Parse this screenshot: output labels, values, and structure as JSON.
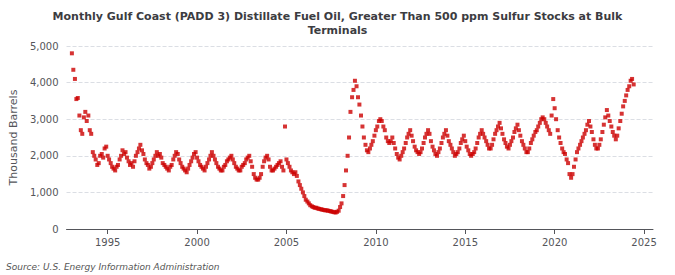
{
  "chart_data": {
    "type": "scatter",
    "title": "Monthly Gulf Coast (PADD 3) Distillate Fuel Oil, Greater Than 500 ppm Sulfur Stocks at Bulk\nTerminals",
    "ylabel": "Thousand Barrels",
    "source": "Source: U.S. Energy Information Administration",
    "color": "#cc0000",
    "marker": "square",
    "grid": true,
    "xlim": [
      1992.7,
      2025.5
    ],
    "xticks": [
      1995,
      2000,
      2005,
      2010,
      2015,
      2020,
      2025
    ],
    "ylim": [
      0,
      5000
    ],
    "yticks": [
      0,
      {
        "value": 1000,
        "label": "1,000"
      },
      {
        "value": 2000,
        "label": "2,000"
      },
      {
        "value": 3000,
        "label": "3,000"
      },
      {
        "value": 4000,
        "label": "4,000"
      },
      {
        "value": 5000,
        "label": "5,000"
      }
    ],
    "x": [
      1993.0,
      1993.08,
      1993.17,
      1993.25,
      1993.33,
      1993.42,
      1993.5,
      1993.58,
      1993.67,
      1993.75,
      1993.83,
      1993.92,
      1994.0,
      1994.08,
      1994.17,
      1994.25,
      1994.33,
      1994.42,
      1994.5,
      1994.58,
      1994.67,
      1994.75,
      1994.83,
      1994.92,
      1995.0,
      1995.08,
      1995.17,
      1995.25,
      1995.33,
      1995.42,
      1995.5,
      1995.58,
      1995.67,
      1995.75,
      1995.83,
      1995.92,
      1996.0,
      1996.08,
      1996.17,
      1996.25,
      1996.33,
      1996.42,
      1996.5,
      1996.58,
      1996.67,
      1996.75,
      1996.83,
      1996.92,
      1997.0,
      1997.08,
      1997.17,
      1997.25,
      1997.33,
      1997.42,
      1997.5,
      1997.58,
      1997.67,
      1997.75,
      1997.83,
      1997.92,
      1998.0,
      1998.08,
      1998.17,
      1998.25,
      1998.33,
      1998.42,
      1998.5,
      1998.58,
      1998.67,
      1998.75,
      1998.83,
      1998.92,
      1999.0,
      1999.08,
      1999.17,
      1999.25,
      1999.33,
      1999.42,
      1999.5,
      1999.58,
      1999.67,
      1999.75,
      1999.83,
      1999.92,
      2000.0,
      2000.08,
      2000.17,
      2000.25,
      2000.33,
      2000.42,
      2000.5,
      2000.58,
      2000.67,
      2000.75,
      2000.83,
      2000.92,
      2001.0,
      2001.08,
      2001.17,
      2001.25,
      2001.33,
      2001.42,
      2001.5,
      2001.58,
      2001.67,
      2001.75,
      2001.83,
      2001.92,
      2002.0,
      2002.08,
      2002.17,
      2002.25,
      2002.33,
      2002.42,
      2002.5,
      2002.58,
      2002.67,
      2002.75,
      2002.83,
      2002.92,
      2003.0,
      2003.08,
      2003.17,
      2003.25,
      2003.33,
      2003.42,
      2003.5,
      2003.58,
      2003.67,
      2003.75,
      2003.83,
      2003.92,
      2004.0,
      2004.08,
      2004.17,
      2004.25,
      2004.33,
      2004.42,
      2004.5,
      2004.58,
      2004.67,
      2004.75,
      2004.83,
      2004.92,
      2005.0,
      2005.08,
      2005.17,
      2005.25,
      2005.33,
      2005.42,
      2005.5,
      2005.58,
      2005.67,
      2005.75,
      2005.83,
      2005.92,
      2006.0,
      2006.08,
      2006.17,
      2006.25,
      2006.33,
      2006.42,
      2006.5,
      2006.58,
      2006.67,
      2006.75,
      2006.83,
      2006.92,
      2007.0,
      2007.08,
      2007.17,
      2007.25,
      2007.33,
      2007.42,
      2007.5,
      2007.58,
      2007.67,
      2007.75,
      2007.83,
      2007.92,
      2008.0,
      2008.08,
      2008.17,
      2008.25,
      2008.33,
      2008.42,
      2008.5,
      2008.58,
      2008.67,
      2008.75,
      2008.83,
      2008.92,
      2009.0,
      2009.08,
      2009.17,
      2009.25,
      2009.33,
      2009.42,
      2009.5,
      2009.58,
      2009.67,
      2009.75,
      2009.83,
      2009.92,
      2010.0,
      2010.08,
      2010.17,
      2010.25,
      2010.33,
      2010.42,
      2010.5,
      2010.58,
      2010.67,
      2010.75,
      2010.83,
      2010.92,
      2011.0,
      2011.08,
      2011.17,
      2011.25,
      2011.33,
      2011.42,
      2011.5,
      2011.58,
      2011.67,
      2011.75,
      2011.83,
      2011.92,
      2012.0,
      2012.08,
      2012.17,
      2012.25,
      2012.33,
      2012.42,
      2012.5,
      2012.58,
      2012.67,
      2012.75,
      2012.83,
      2012.92,
      2013.0,
      2013.08,
      2013.17,
      2013.25,
      2013.33,
      2013.42,
      2013.5,
      2013.58,
      2013.67,
      2013.75,
      2013.83,
      2013.92,
      2014.0,
      2014.08,
      2014.17,
      2014.25,
      2014.33,
      2014.42,
      2014.5,
      2014.58,
      2014.67,
      2014.75,
      2014.83,
      2014.92,
      2015.0,
      2015.08,
      2015.17,
      2015.25,
      2015.33,
      2015.42,
      2015.5,
      2015.58,
      2015.67,
      2015.75,
      2015.83,
      2015.92,
      2016.0,
      2016.08,
      2016.17,
      2016.25,
      2016.33,
      2016.42,
      2016.5,
      2016.58,
      2016.67,
      2016.75,
      2016.83,
      2016.92,
      2017.0,
      2017.08,
      2017.17,
      2017.25,
      2017.33,
      2017.42,
      2017.5,
      2017.58,
      2017.67,
      2017.75,
      2017.83,
      2017.92,
      2018.0,
      2018.08,
      2018.17,
      2018.25,
      2018.33,
      2018.42,
      2018.5,
      2018.58,
      2018.67,
      2018.75,
      2018.83,
      2018.92,
      2019.0,
      2019.08,
      2019.17,
      2019.25,
      2019.33,
      2019.42,
      2019.5,
      2019.58,
      2019.67,
      2019.75,
      2019.83,
      2019.92,
      2020.0,
      2020.08,
      2020.17,
      2020.25,
      2020.33,
      2020.42,
      2020.5,
      2020.58,
      2020.67,
      2020.75,
      2020.83,
      2020.92,
      2021.0,
      2021.08,
      2021.17,
      2021.25,
      2021.33,
      2021.42,
      2021.5,
      2021.58,
      2021.67,
      2021.75,
      2021.83,
      2021.92,
      2022.0,
      2022.08,
      2022.17,
      2022.25,
      2022.33,
      2022.42,
      2022.5,
      2022.58,
      2022.67,
      2022.75,
      2022.83,
      2022.92,
      2023.0,
      2023.08,
      2023.17,
      2023.25,
      2023.33,
      2023.42,
      2023.5,
      2023.58,
      2023.67,
      2023.75,
      2023.83,
      2023.92,
      2024.0,
      2024.08,
      2024.17,
      2024.25,
      2024.33,
      2024.42
    ],
    "values": [
      4800,
      4350,
      4100,
      3550,
      3580,
      3100,
      2700,
      2600,
      3050,
      3200,
      2950,
      3100,
      2700,
      2600,
      2100,
      2000,
      1900,
      1750,
      1800,
      2000,
      2050,
      1950,
      2200,
      2250,
      2000,
      1900,
      1800,
      1700,
      1650,
      1600,
      1700,
      1750,
      1900,
      2000,
      2150,
      2050,
      2100,
      1950,
      1850,
      1750,
      1800,
      1700,
      1850,
      2000,
      2100,
      2200,
      2300,
      2150,
      2050,
      1900,
      1800,
      1750,
      1650,
      1700,
      1800,
      1900,
      2000,
      2100,
      2000,
      2050,
      1950,
      1800,
      1750,
      1700,
      1650,
      1600,
      1700,
      1750,
      1900,
      2000,
      2100,
      2050,
      1900,
      1800,
      1700,
      1650,
      1600,
      1550,
      1650,
      1750,
      1850,
      1950,
      2050,
      2100,
      1950,
      1850,
      1750,
      1700,
      1650,
      1600,
      1700,
      1800,
      1900,
      2000,
      2100,
      2000,
      1900,
      1800,
      1700,
      1650,
      1600,
      1600,
      1700,
      1750,
      1850,
      1900,
      1950,
      2000,
      1900,
      1800,
      1700,
      1650,
      1600,
      1600,
      1700,
      1750,
      1800,
      1900,
      1950,
      2000,
      1850,
      1700,
      1500,
      1400,
      1350,
      1350,
      1400,
      1500,
      1700,
      1850,
      1950,
      2000,
      1900,
      1700,
      1600,
      1600,
      1650,
      1700,
      1750,
      1800,
      1850,
      1700,
      1600,
      2800,
      1900,
      1800,
      1700,
      1600,
      1550,
      1500,
      1550,
      1450,
      1300,
      1200,
      1100,
      1000,
      900,
      800,
      750,
      700,
      650,
      620,
      600,
      580,
      580,
      560,
      550,
      540,
      530,
      520,
      510,
      510,
      500,
      490,
      480,
      470,
      460,
      450,
      470,
      500,
      600,
      700,
      900,
      1200,
      1600,
      2000,
      2500,
      3200,
      3600,
      3800,
      4050,
      3900,
      3600,
      3400,
      3100,
      2800,
      2500,
      2300,
      2150,
      2100,
      2200,
      2300,
      2400,
      2550,
      2700,
      2800,
      2950,
      3000,
      2950,
      2800,
      2700,
      2500,
      2400,
      2350,
      2400,
      2500,
      2350,
      2200,
      2050,
      1950,
      1900,
      2000,
      2100,
      2200,
      2350,
      2500,
      2600,
      2700,
      2550,
      2400,
      2250,
      2150,
      2100,
      2050,
      2100,
      2200,
      2350,
      2500,
      2600,
      2700,
      2600,
      2400,
      2250,
      2150,
      2050,
      2000,
      2100,
      2200,
      2350,
      2500,
      2600,
      2700,
      2550,
      2400,
      2300,
      2200,
      2100,
      2000,
      2050,
      2100,
      2200,
      2350,
      2450,
      2550,
      2400,
      2250,
      2150,
      2050,
      2000,
      2050,
      2100,
      2200,
      2350,
      2500,
      2600,
      2700,
      2600,
      2500,
      2400,
      2300,
      2200,
      2200,
      2300,
      2450,
      2600,
      2700,
      2800,
      2900,
      2750,
      2600,
      2450,
      2350,
      2250,
      2200,
      2300,
      2400,
      2500,
      2650,
      2750,
      2850,
      2700,
      2550,
      2400,
      2300,
      2200,
      2100,
      2100,
      2200,
      2350,
      2450,
      2550,
      2650,
      2700,
      2800,
      2900,
      3000,
      3050,
      3000,
      2900,
      2800,
      2700,
      2600,
      3100,
      3550,
      3300,
      3000,
      2700,
      2500,
      2350,
      2200,
      2100,
      2050,
      1900,
      1800,
      1500,
      1400,
      1500,
      1700,
      1900,
      2100,
      2200,
      2300,
      2400,
      2500,
      2600,
      2700,
      2850,
      2950,
      2800,
      2650,
      2450,
      2300,
      2200,
      2200,
      2300,
      2450,
      2650,
      2850,
      3050,
      3250,
      3100,
      2950,
      2800,
      2650,
      2550,
      2450,
      2550,
      2750,
      2950,
      3150,
      3350,
      3500,
      3650,
      3800,
      3900,
      4050,
      4100,
      3950
    ]
  }
}
